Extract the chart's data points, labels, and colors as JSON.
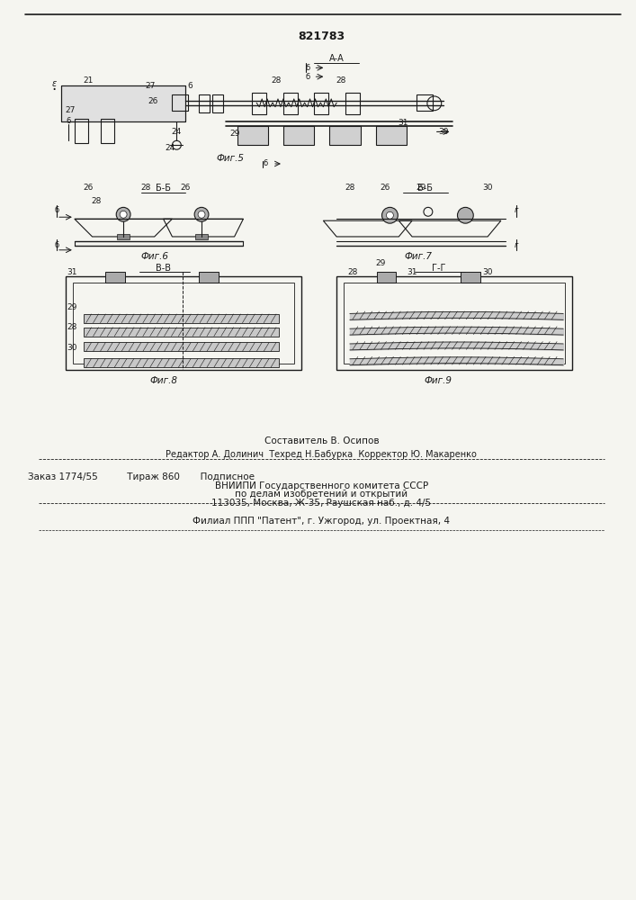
{
  "patent_number": "821783",
  "background_color": "#f5f5f0",
  "line_color": "#1a1a1a",
  "text_color": "#1a1a1a",
  "footer_lines": [
    "Составитель В. Осипов",
    "Редактор А. Долинич  Техред Н.Бабурка  Корректор Ю. Макаренко",
    "Заказ 1774/55          Тираж 860       Подписное",
    "ВНИИПИ Государственного комитета СССР",
    "по делам изобретений и открытий",
    "113035, Москва, Ж-35, Раушская наб., д. 4/5",
    "Филиал ППП \"Патент\", г. Ужгород, ул. Проектная, 4"
  ],
  "fig5_label": "Фиг.5",
  "fig6_label": "Фиг.6",
  "fig7_label": "Фиг.7",
  "fig8_label": "Фиг.8",
  "fig9_label": "Фиг.9",
  "section_AA": "А-А",
  "section_BB": "Б-Б",
  "section_GG": "Г-Г"
}
